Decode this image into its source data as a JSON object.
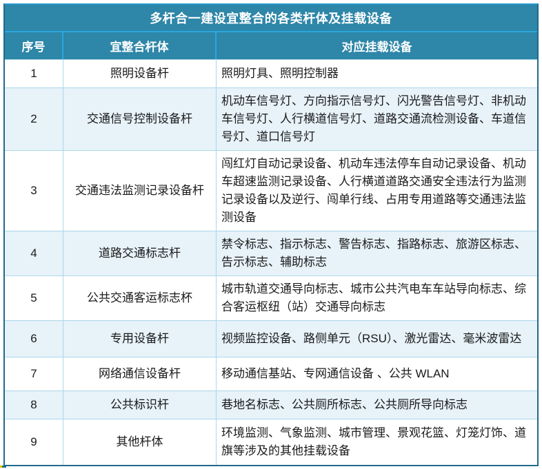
{
  "colors": {
    "header_bg": "#2E86A8",
    "accent_border": "#29A7DE",
    "outer_border": "#20698A",
    "row_alt_bg": "#E7F2F9",
    "body_border": "#ABD7EA",
    "header_text": "#FFFFFF",
    "body_text": "#1A1A1A"
  },
  "table": {
    "title": "多杆合一建设宜整合的各类杆体及挂载设备",
    "headers": [
      "序号",
      "宜整合杆体",
      "对应挂载设备"
    ],
    "rows": [
      {
        "no": "1",
        "pole": "照明设备杆",
        "devices": "照明灯具、照明控制器"
      },
      {
        "no": "2",
        "pole": "交通信号控制设备杆",
        "devices": "机动车信号灯、方向指示信号灯、闪光警告信号灯、非机动车信号灯、人行横道信号灯、道路交通流检测设备、车道信号灯、道口信号灯"
      },
      {
        "no": "3",
        "pole": "交通违法监测记录设备杆",
        "devices": "闯红灯自动记录设备、机动车违法停车自动记录设备、机动车超速监测记录设备、人行横道道路交通安全违法行为监测记录设备以及逆行、闯单行线、占用专用道路等交通违法监测设备"
      },
      {
        "no": "4",
        "pole": "道路交通标志杆",
        "devices": "禁令标志、指示标志、警告标志、指路标志、旅游区标志、告示标志、辅助标志"
      },
      {
        "no": "5",
        "pole": "公共交通客运标志杯",
        "devices": "城市轨道交通导向标志、城市公共汽电车车站导向标志、综合客运枢纽（站）交通导向标志"
      },
      {
        "no": "6",
        "pole": "专用设备杆",
        "devices": "视频监控设备、路侧单元（RSU）、激光雷达、毫米波雷达"
      },
      {
        "no": "7",
        "pole": "网络通信设备杆",
        "devices": "移动通信基站、专网通信设备 、公共 WLAN"
      },
      {
        "no": "8",
        "pole": "公共标识杆",
        "devices": "巷地名标志、公共厕所标志、公共厕所导向标志"
      },
      {
        "no": "9",
        "pole": "其他杆体",
        "devices": "环境监测、气象监测、城市管理、景观花篮、灯笼灯饰、道旗等涉及的其他挂载设备"
      }
    ]
  }
}
